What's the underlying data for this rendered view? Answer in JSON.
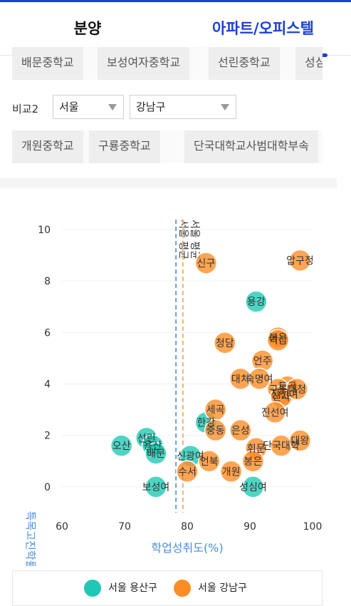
{
  "tabs": [
    {
      "label": "분양"
    },
    {
      "label": "아파트/오피스텔"
    }
  ],
  "compare1": {
    "schools": [
      "배문중학교",
      "보성여자중학교",
      "선린중학교",
      "성심"
    ]
  },
  "compare2": {
    "label": "비교2",
    "region": "서울",
    "district": "강남구",
    "schools": [
      "개원중학교",
      "구룡중학교",
      "단국대학교사범대학부속"
    ]
  },
  "chart_data": {
    "type": "scatter",
    "xlabel": "학업성취도(%)",
    "ylabel": "특목고진학률(%)",
    "xlim": [
      60,
      100
    ],
    "ylim": [
      -1,
      10.5
    ],
    "x_ticks": [
      60,
      70,
      80,
      90,
      100
    ],
    "y_ticks": [
      0,
      2,
      4,
      6,
      8,
      10
    ],
    "reference_lines": [
      {
        "label": "서울 평균",
        "x": 78.2,
        "color": "#6a9fd8"
      },
      {
        "label": "서울 평균",
        "x": 79.3,
        "color": "#f4b070"
      }
    ],
    "series": [
      {
        "name": "서울 용산구",
        "color": "#1ec8b4",
        "points": [
          {
            "label": "용강",
            "x": 91,
            "y": 7.2
          },
          {
            "label": "한강",
            "x": 83,
            "y": 2.5
          },
          {
            "label": "선린",
            "x": 73.5,
            "y": 1.9
          },
          {
            "label": "오산",
            "x": 69.5,
            "y": 1.6
          },
          {
            "label": "용산",
            "x": 74.5,
            "y": 1.6
          },
          {
            "label": "배문",
            "x": 75,
            "y": 1.3
          },
          {
            "label": "신광여",
            "x": 80.5,
            "y": 1.2
          },
          {
            "label": "보성여",
            "x": 75,
            "y": 0
          },
          {
            "label": "성심여",
            "x": 90.5,
            "y": 0
          }
        ]
      },
      {
        "name": "서울 강남구",
        "color": "#fd8c24",
        "points": [
          {
            "label": "압구정",
            "x": 98,
            "y": 8.8
          },
          {
            "label": "신구",
            "x": 83,
            "y": 8.7
          },
          {
            "label": "봉은",
            "x": 94.5,
            "y": 5.8
          },
          {
            "label": "역삼",
            "x": 94.5,
            "y": 5.7
          },
          {
            "label": "청담",
            "x": 86,
            "y": 5.6
          },
          {
            "label": "언주",
            "x": 92,
            "y": 4.9
          },
          {
            "label": "대치",
            "x": 88.5,
            "y": 4.2
          },
          {
            "label": "숙명여",
            "x": 91.5,
            "y": 4.2
          },
          {
            "label": "도곡",
            "x": 96,
            "y": 3.9
          },
          {
            "label": "진선여",
            "x": 95.5,
            "y": 3.6
          },
          {
            "label": "구룡",
            "x": 94.5,
            "y": 3.8
          },
          {
            "label": "신사",
            "x": 95,
            "y": 3.5
          },
          {
            "label": "대청",
            "x": 97.5,
            "y": 3.8
          },
          {
            "label": "세곡",
            "x": 84.5,
            "y": 3.0
          },
          {
            "label": "진선여",
            "x": 94,
            "y": 2.9
          },
          {
            "label": "중동",
            "x": 84.5,
            "y": 2.2
          },
          {
            "label": "은성",
            "x": 88.5,
            "y": 2.2
          },
          {
            "label": "휘문",
            "x": 91,
            "y": 1.5
          },
          {
            "label": "단국대학",
            "x": 95,
            "y": 1.6
          },
          {
            "label": "대왕",
            "x": 98,
            "y": 1.8
          },
          {
            "label": "언북",
            "x": 83.5,
            "y": 1.0
          },
          {
            "label": "수서",
            "x": 80,
            "y": 0.6
          },
          {
            "label": "개원",
            "x": 87,
            "y": 0.6
          },
          {
            "label": "봉은",
            "x": 90.5,
            "y": 1.0
          }
        ]
      }
    ],
    "legend": "bottom"
  }
}
